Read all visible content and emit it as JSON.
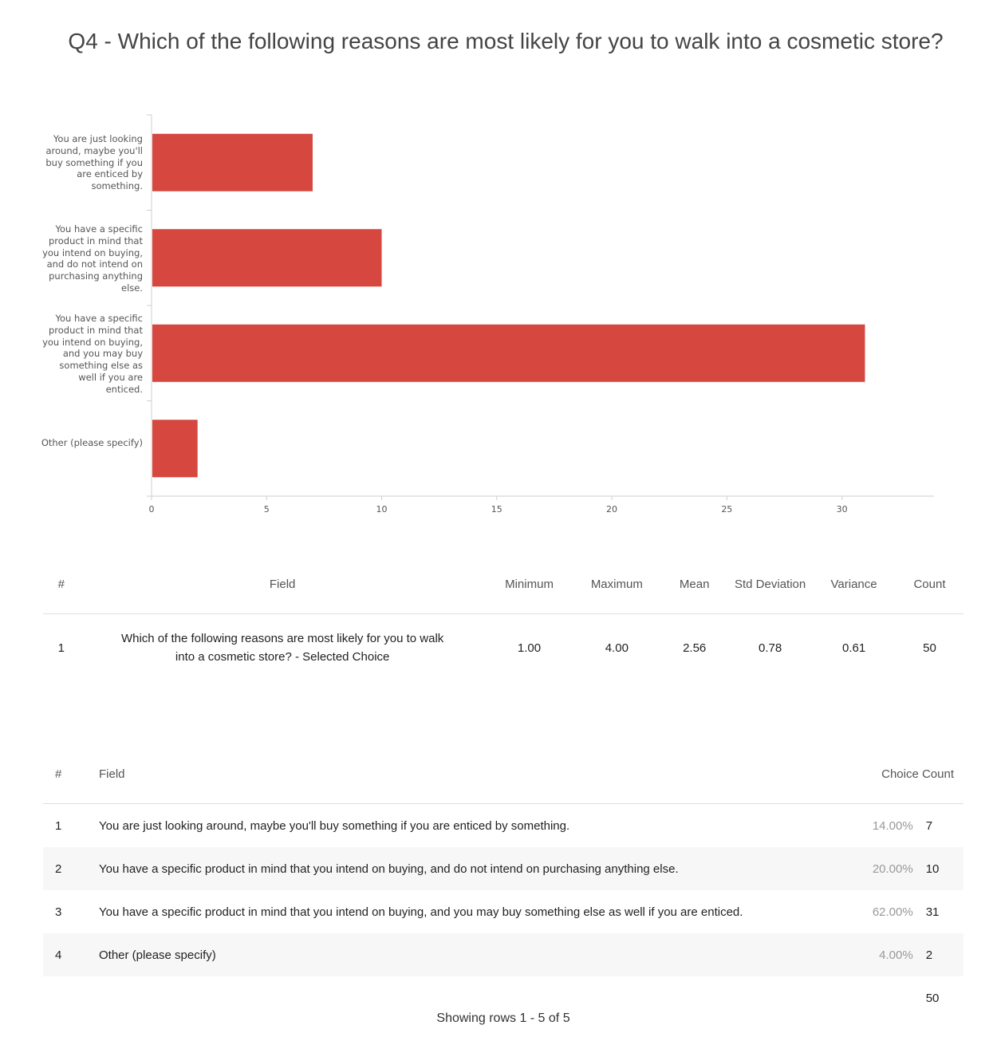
{
  "title": "Q4 - Which of the following reasons are most likely for you to walk into a cosmetic store?",
  "chart_data": {
    "type": "bar",
    "orientation": "horizontal",
    "categories": [
      "You are just looking around, maybe you'll buy something if you are enticed by something.",
      "You have a specific product in mind that you intend on buying, and do not intend on purchasing anything else.",
      "You have a specific product in mind that you intend on buying, and you may buy something else as well if you are enticed.",
      "Other (please specify)"
    ],
    "values": [
      7,
      10,
      31,
      2
    ],
    "xlim": [
      0,
      34
    ],
    "xticks": [
      0,
      5,
      10,
      15,
      20,
      25,
      30
    ],
    "color": "#d5473f",
    "title": "",
    "xlabel": "",
    "ylabel": ""
  },
  "stats_table": {
    "headers": [
      "#",
      "Field",
      "Minimum",
      "Maximum",
      "Mean",
      "Std Deviation",
      "Variance",
      "Count"
    ],
    "row": {
      "num": "1",
      "field": "Which of the following reasons are most likely for you to walk into a cosmetic store? - Selected Choice",
      "min": "1.00",
      "max": "4.00",
      "mean": "2.56",
      "std": "0.78",
      "variance": "0.61",
      "count": "50"
    }
  },
  "choice_table": {
    "headers": {
      "num": "#",
      "field": "Field",
      "count": "Choice Count"
    },
    "rows": [
      {
        "num": "1",
        "field": "You are just looking around, maybe you'll buy something if you are enticed by something.",
        "pct": "14.00%",
        "count": "7"
      },
      {
        "num": "2",
        "field": "You have a specific product in mind that you intend on buying, and do not intend on purchasing anything else.",
        "pct": "20.00%",
        "count": "10"
      },
      {
        "num": "3",
        "field": "You have a specific product in mind that you intend on buying, and you may buy something else as well if you are enticed.",
        "pct": "62.00%",
        "count": "31"
      },
      {
        "num": "4",
        "field": "Other (please specify)",
        "pct": "4.00%",
        "count": "2"
      }
    ],
    "total": "50"
  },
  "footer": "Showing rows 1 - 5 of 5"
}
